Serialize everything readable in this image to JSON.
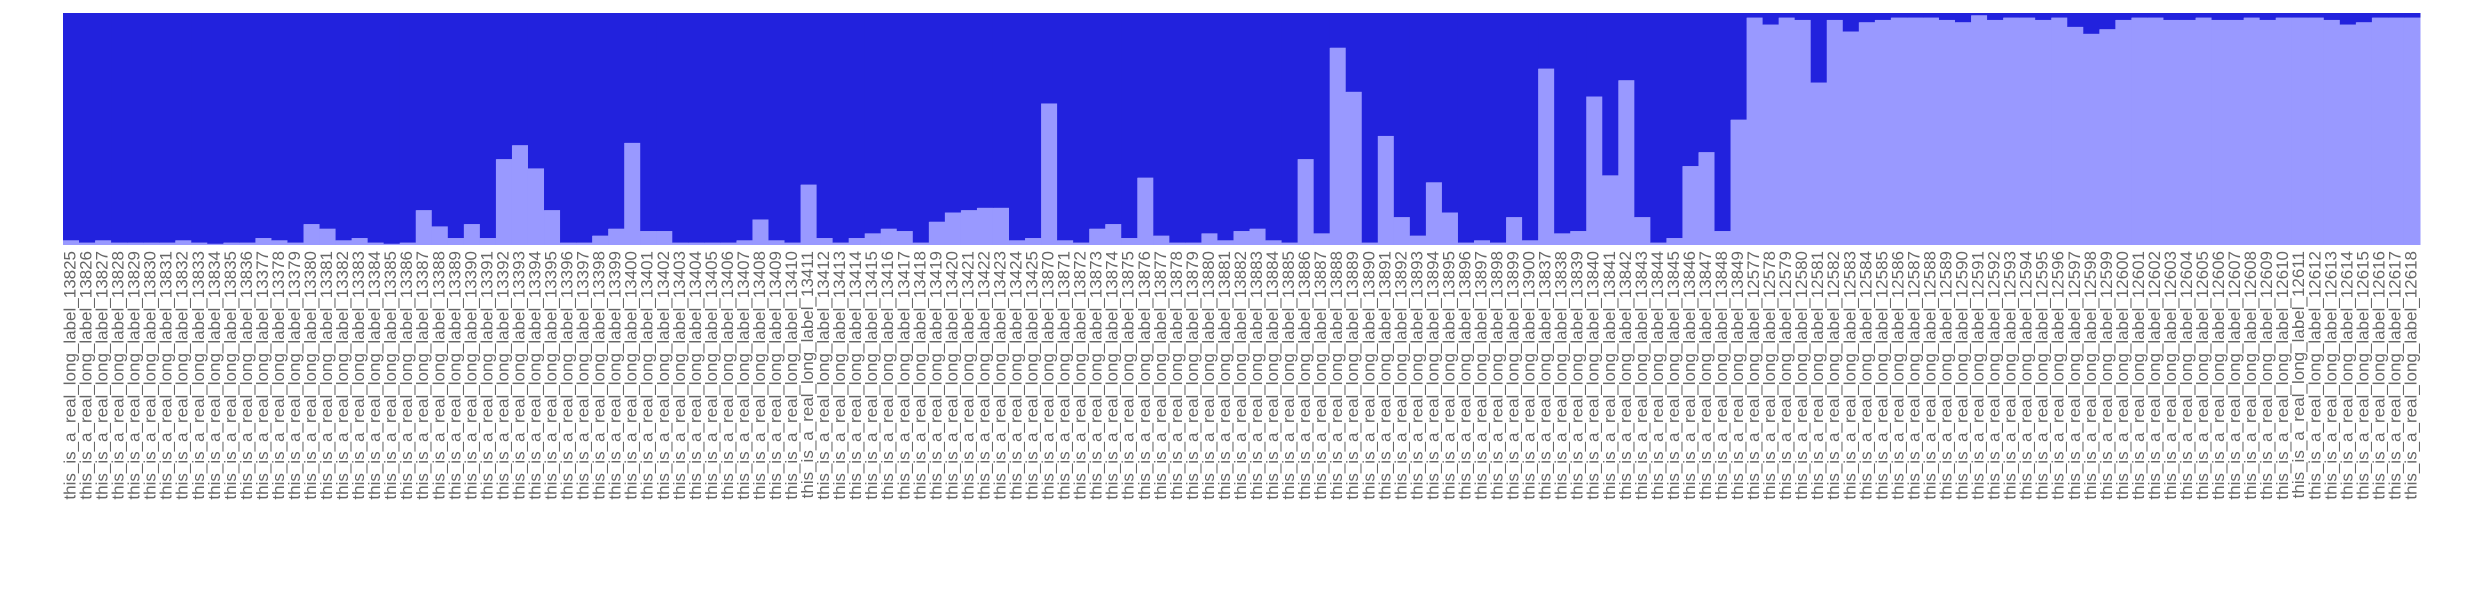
{
  "chart_data": {
    "type": "stacked_bar",
    "categories": [
      "this_is_a_real_long_label_13825",
      "this_is_a_real_long_label_13826",
      "this_is_a_real_long_label_13827",
      "this_is_a_real_long_label_13828",
      "this_is_a_real_long_label_13829",
      "this_is_a_real_long_label_13830",
      "this_is_a_real_long_label_13831",
      "this_is_a_real_long_label_13832",
      "this_is_a_real_long_label_13833",
      "this_is_a_real_long_label_13834",
      "this_is_a_real_long_label_13835",
      "this_is_a_real_long_label_13836",
      "this_is_a_real_long_label_13377",
      "this_is_a_real_long_label_13378",
      "this_is_a_real_long_label_13379",
      "this_is_a_real_long_label_13380",
      "this_is_a_real_long_label_13381",
      "this_is_a_real_long_label_13382",
      "this_is_a_real_long_label_13383",
      "this_is_a_real_long_label_13384",
      "this_is_a_real_long_label_13385",
      "this_is_a_real_long_label_13386",
      "this_is_a_real_long_label_13387",
      "this_is_a_real_long_label_13388",
      "this_is_a_real_long_label_13389",
      "this_is_a_real_long_label_13390",
      "this_is_a_real_long_label_13391",
      "this_is_a_real_long_label_13392",
      "this_is_a_real_long_label_13393",
      "this_is_a_real_long_label_13394",
      "this_is_a_real_long_label_13395",
      "this_is_a_real_long_label_13396",
      "this_is_a_real_long_label_13397",
      "this_is_a_real_long_label_13398",
      "this_is_a_real_long_label_13399",
      "this_is_a_real_long_label_13400",
      "this_is_a_real_long_label_13401",
      "this_is_a_real_long_label_13402",
      "this_is_a_real_long_label_13403",
      "this_is_a_real_long_label_13404",
      "this_is_a_real_long_label_13405",
      "this_is_a_real_long_label_13406",
      "this_is_a_real_long_label_13407",
      "this_is_a_real_long_label_13408",
      "this_is_a_real_long_label_13409",
      "this_is_a_real_long_label_13410",
      "this_is_a_real_long_label_13411",
      "this_is_a_real_long_label_13412",
      "this_is_a_real_long_label_13413",
      "this_is_a_real_long_label_13414",
      "this_is_a_real_long_label_13415",
      "this_is_a_real_long_label_13416",
      "this_is_a_real_long_label_13417",
      "this_is_a_real_long_label_13418",
      "this_is_a_real_long_label_13419",
      "this_is_a_real_long_label_13420",
      "this_is_a_real_long_label_13421",
      "this_is_a_real_long_label_13422",
      "this_is_a_real_long_label_13423",
      "this_is_a_real_long_label_13424",
      "this_is_a_real_long_label_13425",
      "this_is_a_real_long_label_13870",
      "this_is_a_real_long_label_13871",
      "this_is_a_real_long_label_13872",
      "this_is_a_real_long_label_13873",
      "this_is_a_real_long_label_13874",
      "this_is_a_real_long_label_13875",
      "this_is_a_real_long_label_13876",
      "this_is_a_real_long_label_13877",
      "this_is_a_real_long_label_13878",
      "this_is_a_real_long_label_13879",
      "this_is_a_real_long_label_13880",
      "this_is_a_real_long_label_13881",
      "this_is_a_real_long_label_13882",
      "this_is_a_real_long_label_13883",
      "this_is_a_real_long_label_13884",
      "this_is_a_real_long_label_13885",
      "this_is_a_real_long_label_13886",
      "this_is_a_real_long_label_13887",
      "this_is_a_real_long_label_13888",
      "this_is_a_real_long_label_13889",
      "this_is_a_real_long_label_13890",
      "this_is_a_real_long_label_13891",
      "this_is_a_real_long_label_13892",
      "this_is_a_real_long_label_13893",
      "this_is_a_real_long_label_13894",
      "this_is_a_real_long_label_13895",
      "this_is_a_real_long_label_13896",
      "this_is_a_real_long_label_13897",
      "this_is_a_real_long_label_13898",
      "this_is_a_real_long_label_13899",
      "this_is_a_real_long_label_13900",
      "this_is_a_real_long_label_13837",
      "this_is_a_real_long_label_13838",
      "this_is_a_real_long_label_13839",
      "this_is_a_real_long_label_13840",
      "this_is_a_real_long_label_13841",
      "this_is_a_real_long_label_13842",
      "this_is_a_real_long_label_13843",
      "this_is_a_real_long_label_13844",
      "this_is_a_real_long_label_13845",
      "this_is_a_real_long_label_13846",
      "this_is_a_real_long_label_13847",
      "this_is_a_real_long_label_13848",
      "this_is_a_real_long_label_13849",
      "this_is_a_real_long_label_12577",
      "this_is_a_real_long_label_12578",
      "this_is_a_real_long_label_12579",
      "this_is_a_real_long_label_12580",
      "this_is_a_real_long_label_12581",
      "this_is_a_real_long_label_12582",
      "this_is_a_real_long_label_12583",
      "this_is_a_real_long_label_12584",
      "this_is_a_real_long_label_12585",
      "this_is_a_real_long_label_12586",
      "this_is_a_real_long_label_12587",
      "this_is_a_real_long_label_12588",
      "this_is_a_real_long_label_12589",
      "this_is_a_real_long_label_12590",
      "this_is_a_real_long_label_12591",
      "this_is_a_real_long_label_12592",
      "this_is_a_real_long_label_12593",
      "this_is_a_real_long_label_12594",
      "this_is_a_real_long_label_12595",
      "this_is_a_real_long_label_12596",
      "this_is_a_real_long_label_12597",
      "this_is_a_real_long_label_12598",
      "this_is_a_real_long_label_12599",
      "this_is_a_real_long_label_12600",
      "this_is_a_real_long_label_12601",
      "this_is_a_real_long_label_12602",
      "this_is_a_real_long_label_12603",
      "this_is_a_real_long_label_12604",
      "this_is_a_real_long_label_12605",
      "this_is_a_real_long_label_12606",
      "this_is_a_real_long_label_12607",
      "this_is_a_real_long_label_12608",
      "this_is_a_real_long_label_12609",
      "this_is_a_real_long_label_12610",
      "this_is_a_real_long_label_12611",
      "this_is_a_real_long_label_12612",
      "this_is_a_real_long_label_12613",
      "this_is_a_real_long_label_12614",
      "this_is_a_real_long_label_12615",
      "this_is_a_real_long_label_12616",
      "this_is_a_real_long_label_12617",
      "this_is_a_real_long_label_12618"
    ],
    "series": [
      {
        "color": "#9999ff",
        "values": [
          2,
          1,
          2,
          1,
          1,
          1,
          1,
          2,
          1,
          0.5,
          1,
          1,
          3,
          2,
          1,
          9,
          7,
          2,
          3,
          1,
          0.5,
          1,
          15,
          8,
          3,
          9,
          3,
          37,
          43,
          33,
          15,
          1,
          1,
          4,
          7,
          44,
          6,
          6,
          1,
          1,
          1,
          1,
          2,
          11,
          2,
          1,
          26,
          3,
          1,
          3,
          5,
          7,
          6,
          1,
          10,
          14,
          15,
          16,
          16,
          2,
          3,
          61,
          2,
          1,
          7,
          9,
          3,
          29,
          4,
          1,
          1,
          5,
          2,
          6,
          7,
          2,
          1,
          37,
          5,
          85,
          66,
          1,
          47,
          12,
          4,
          27,
          14,
          1,
          2,
          1,
          12,
          2,
          76,
          5,
          6,
          64,
          30,
          71,
          12,
          1,
          3,
          34,
          40,
          6,
          54,
          98,
          95,
          98,
          97,
          70,
          97,
          92,
          96,
          97,
          98,
          98,
          98,
          97,
          96,
          99,
          97,
          98,
          98,
          97,
          98,
          94,
          91,
          93,
          97,
          98,
          98,
          97,
          97,
          98,
          97,
          97,
          98,
          97,
          98,
          98,
          98,
          97,
          95,
          96,
          98,
          98,
          98
        ]
      },
      {
        "color": "#2222dd",
        "values": [
          98,
          99,
          98,
          99,
          99,
          99,
          99,
          98,
          99,
          99.5,
          99,
          99,
          97,
          98,
          99,
          91,
          93,
          98,
          97,
          99,
          99.5,
          99,
          85,
          92,
          97,
          91,
          97,
          63,
          57,
          67,
          85,
          99,
          99,
          96,
          93,
          56,
          94,
          94,
          99,
          99,
          99,
          99,
          98,
          89,
          98,
          99,
          74,
          97,
          99,
          97,
          95,
          93,
          94,
          99,
          90,
          86,
          85,
          84,
          84,
          98,
          97,
          39,
          98,
          99,
          93,
          91,
          97,
          71,
          96,
          99,
          99,
          95,
          98,
          94,
          93,
          98,
          99,
          63,
          95,
          15,
          34,
          99,
          53,
          88,
          96,
          73,
          86,
          99,
          98,
          99,
          88,
          98,
          24,
          95,
          94,
          36,
          70,
          29,
          88,
          99,
          97,
          66,
          60,
          94,
          46,
          2,
          5,
          2,
          3,
          30,
          3,
          8,
          4,
          3,
          2,
          2,
          2,
          3,
          4,
          1,
          3,
          2,
          2,
          3,
          2,
          6,
          9,
          7,
          3,
          2,
          2,
          3,
          3,
          2,
          3,
          3,
          2,
          3,
          2,
          2,
          2,
          3,
          5,
          4,
          2,
          2,
          2
        ]
      }
    ],
    "ylim": [
      0,
      100
    ]
  }
}
